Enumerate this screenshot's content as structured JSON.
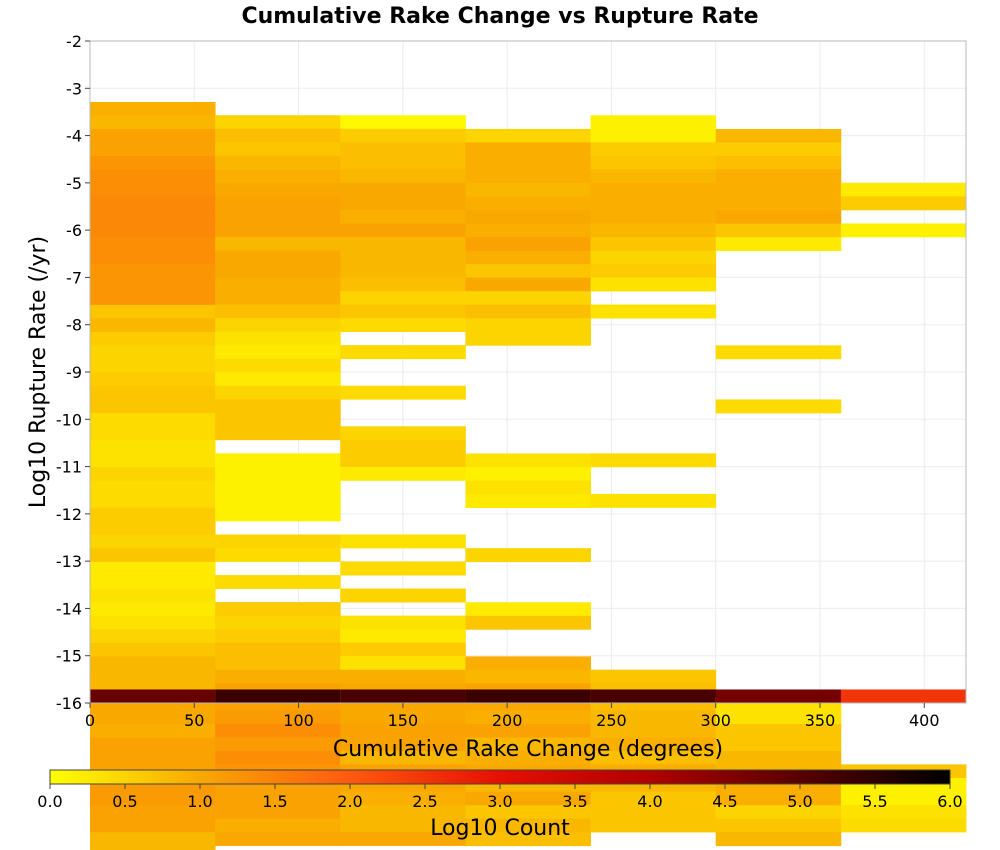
{
  "chart_data": {
    "type": "heatmap",
    "title": "Cumulative Rake Change vs Rupture Rate",
    "xlabel": "Cumulative Rake Change (degrees)",
    "ylabel": "Log10 Rupture Rate (/yr)",
    "colorbar_label": "Log10 Count",
    "xlim": [
      0,
      420
    ],
    "ylim": [
      -16,
      -2
    ],
    "x_ticks": [
      0,
      50,
      100,
      150,
      200,
      250,
      300,
      350,
      400
    ],
    "y_ticks": [
      -2,
      -3,
      -4,
      -5,
      -6,
      -7,
      -8,
      -9,
      -10,
      -11,
      -12,
      -13,
      -14,
      -15,
      -16
    ],
    "color_range": [
      0.0,
      6.0
    ],
    "colorbar_ticks": [
      "0.0",
      "0.5",
      "1.0",
      "1.5",
      "2.0",
      "2.5",
      "3.0",
      "3.5",
      "4.0",
      "4.5",
      "5.0",
      "5.5",
      "6.0"
    ],
    "colormap": [
      "#ffff00",
      "#f9a800",
      "#ff5a10",
      "#e51000",
      "#b00000",
      "#000000"
    ],
    "grid": true,
    "x_bin_width": 60,
    "y_bin_height": 0.286,
    "columns": [
      {
        "x_start": 0,
        "top": -3.29,
        "values": [
          1.1,
          1.0,
          1.3,
          1.3,
          1.5,
          1.6,
          1.6,
          1.7,
          1.7,
          1.7,
          1.6,
          1.6,
          1.5,
          1.5,
          1.5,
          0.8,
          1.0,
          0.7,
          0.6,
          0.6,
          0.7,
          0.8,
          0.8,
          0.5,
          0.5,
          0.4,
          0.4,
          0.6,
          0.5,
          0.5,
          0.7,
          0.7,
          0.6,
          0.8,
          0.3,
          0.3,
          0.4,
          0.3,
          0.4,
          0.6,
          0.8,
          1.0,
          1.0,
          1.0,
          1.2,
          1.2,
          1.1,
          1.3,
          1.3,
          1.3,
          1.4,
          1.4,
          1.3,
          1.3,
          1.0,
          1.0,
          1.1,
          5.3
        ]
      },
      {
        "x_start": 60,
        "top": -3.57,
        "values": [
          0.6,
          0.9,
          0.8,
          1.0,
          1.1,
          1.2,
          1.3,
          1.3,
          1.3,
          1.0,
          1.2,
          1.2,
          1.1,
          1.1,
          0.9,
          0.6,
          0.4,
          0.3,
          0.5,
          0.3,
          0.6,
          0.8,
          0.8,
          0.8,
          null,
          0.2,
          0.2,
          0.2,
          0.2,
          0.2,
          null,
          0.6,
          0.5,
          null,
          0.5,
          null,
          0.7,
          0.6,
          0.7,
          0.9,
          0.9,
          1.1,
          1.3,
          1.3,
          1.4,
          1.6,
          1.4,
          1.6,
          1.5,
          1.3,
          1.3,
          1.3,
          1.1,
          1.2,
          5.6
        ]
      },
      {
        "x_start": 120,
        "top": -3.57,
        "values": [
          0.1,
          0.7,
          0.9,
          0.9,
          1.0,
          1.2,
          1.2,
          1.1,
          1.3,
          1.0,
          1.0,
          1.0,
          0.9,
          0.6,
          0.8,
          0.5,
          null,
          0.5,
          null,
          null,
          0.5,
          null,
          null,
          0.6,
          0.7,
          0.7,
          0.3,
          null,
          null,
          null,
          null,
          0.4,
          null,
          0.5,
          null,
          0.6,
          null,
          0.4,
          0.3,
          0.7,
          0.4,
          1.1,
          1.2,
          1.2,
          1.2,
          1.3,
          1.3,
          1.0,
          1.3,
          1.2,
          1.1,
          1.0,
          1.0,
          1.2,
          5.5
        ]
      },
      {
        "x_start": 180,
        "top": -3.86,
        "values": [
          0.6,
          1.1,
          1.1,
          1.1,
          1.0,
          1.1,
          1.2,
          1.1,
          1.3,
          1.1,
          0.8,
          1.2,
          0.6,
          0.9,
          0.6,
          0.6,
          null,
          null,
          null,
          null,
          null,
          null,
          null,
          null,
          0.4,
          0.2,
          0.4,
          0.3,
          null,
          null,
          null,
          0.6,
          null,
          null,
          null,
          0.3,
          0.8,
          null,
          null,
          1.1,
          1.0,
          1.3,
          1.2,
          1.1,
          1.3,
          1.0,
          1.1,
          1.2,
          1.0,
          1.2,
          0.8,
          1.0,
          0.9,
          5.6
        ]
      },
      {
        "x_start": 240,
        "top": -3.57,
        "values": [
          0.2,
          0.2,
          0.7,
          0.8,
          1.0,
          1.1,
          1.1,
          1.1,
          1.0,
          0.8,
          0.6,
          0.7,
          0.4,
          null,
          0.4,
          null,
          null,
          null,
          null,
          null,
          null,
          null,
          null,
          null,
          null,
          0.5,
          null,
          null,
          0.4,
          null,
          null,
          null,
          null,
          null,
          null,
          null,
          null,
          null,
          null,
          null,
          null,
          0.8,
          0.9,
          0.9,
          1.0,
          1.0,
          1.1,
          0.9,
          1.1,
          1.0,
          0.8,
          0.8,
          0.8,
          5.5
        ]
      },
      {
        "x_start": 300,
        "top": -3.86,
        "values": [
          1.0,
          0.7,
          0.9,
          1.1,
          1.1,
          1.1,
          1.2,
          0.8,
          0.3,
          null,
          null,
          null,
          null,
          null,
          null,
          null,
          0.5,
          null,
          null,
          null,
          0.5,
          null,
          null,
          null,
          null,
          null,
          null,
          null,
          null,
          null,
          null,
          null,
          null,
          null,
          null,
          null,
          null,
          null,
          null,
          null,
          null,
          null,
          0.4,
          0.4,
          0.8,
          0.8,
          1.0,
          1.0,
          1.1,
          1.1,
          0.6,
          0.8,
          1.0,
          5.2
        ]
      },
      {
        "x_start": 360,
        "top": -5.0,
        "values": [
          0.3,
          0.7,
          null,
          0.2,
          null,
          null,
          null,
          null,
          null,
          null,
          null,
          null,
          null,
          null,
          null,
          null,
          null,
          null,
          null,
          null,
          null,
          null,
          null,
          null,
          null,
          null,
          null,
          null,
          null,
          null,
          null,
          null,
          null,
          null,
          null,
          null,
          null,
          null,
          null,
          null,
          null,
          null,
          null,
          0.8,
          0.2,
          0.2,
          0.4,
          0.5,
          null,
          null,
          null,
          3.0
        ]
      }
    ]
  }
}
